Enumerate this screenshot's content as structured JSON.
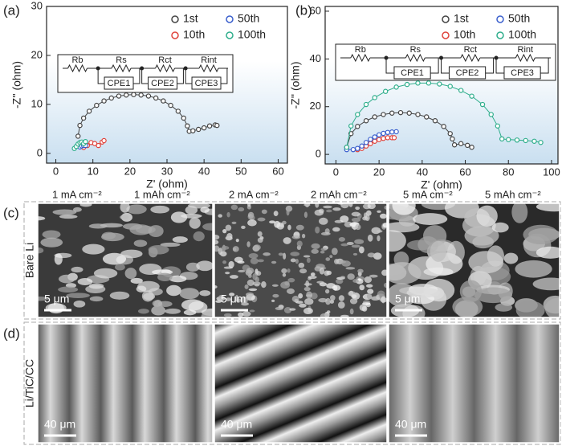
{
  "chart_data": [
    {
      "type": "line",
      "label": "(a)",
      "xlabel": "Z' (ohm)",
      "ylabel": "-Z'' (ohm)",
      "xlim": [
        -2.5,
        62.5
      ],
      "ylim": [
        -2,
        30
      ],
      "xticks": [
        0,
        10,
        20,
        30,
        40,
        50,
        60
      ],
      "yticks": [
        0,
        10,
        20,
        30
      ],
      "legend": "upper right",
      "circuit": {
        "resistors": [
          "Rb",
          "Rs",
          "Rct",
          "Rint"
        ],
        "cpes": [
          "CPE1",
          "CPE2",
          "CPE3"
        ]
      },
      "series": [
        {
          "name": "1st",
          "color": "#444444",
          "x": [
            6,
            6.5,
            7.5,
            9,
            11,
            13,
            15,
            17,
            19,
            21,
            23,
            25,
            27,
            29,
            31,
            33,
            34.5,
            35.5,
            36,
            37,
            38.5,
            40,
            41.5,
            43,
            43.5
          ],
          "values": [
            3.5,
            5.7,
            7.2,
            8.6,
            9.8,
            10.7,
            11.3,
            11.7,
            11.9,
            12,
            11.9,
            11.7,
            11.3,
            10.7,
            9.8,
            8.6,
            7.2,
            5.6,
            4.5,
            4.6,
            4.9,
            5.2,
            5.6,
            5.8,
            5.7
          ]
        },
        {
          "name": "10th",
          "color": "#e0443c",
          "x": [
            7.5,
            8.5,
            9.5,
            10.5,
            11.5,
            12.5,
            13
          ],
          "values": [
            1.2,
            1.6,
            2.2,
            2,
            1.6,
            2.3,
            2.6
          ]
        },
        {
          "name": "50th",
          "color": "#3a5fcd",
          "x": [
            6.5,
            7,
            7.5,
            8
          ],
          "values": [
            1.3,
            1.5,
            1.6,
            1.6
          ]
        },
        {
          "name": "100th",
          "color": "#2fae8c",
          "x": [
            5,
            5.5,
            6,
            6.5,
            7,
            7.5,
            8
          ],
          "values": [
            1,
            1.4,
            1.9,
            2.2,
            2.3,
            2,
            2.4
          ]
        }
      ]
    },
    {
      "type": "line",
      "label": "(b)",
      "xlabel": "Z' (ohm)",
      "ylabel": "-Z'' (ohm)",
      "xlim": [
        -5,
        103
      ],
      "ylim": [
        -4,
        62
      ],
      "xticks": [
        0,
        20,
        40,
        60,
        80,
        100
      ],
      "yticks": [
        0,
        20,
        40,
        60
      ],
      "legend": "upper right",
      "circuit": {
        "resistors": [
          "Rb",
          "Rs",
          "Rct",
          "Rint"
        ],
        "cpes": [
          "CPE1",
          "CPE2",
          "CPE3"
        ]
      },
      "series": [
        {
          "name": "1st",
          "color": "#444444",
          "x": [
            5,
            7,
            10,
            14,
            18,
            22,
            26,
            30,
            34,
            38,
            42,
            46,
            50,
            53,
            54,
            55,
            58,
            61,
            63
          ],
          "values": [
            3,
            8.7,
            11.7,
            14.1,
            15.7,
            16.7,
            17.3,
            17.5,
            17.3,
            16.7,
            15.7,
            14.1,
            11.7,
            8.7,
            6.5,
            4,
            4.5,
            3.8,
            3
          ]
        },
        {
          "name": "10th",
          "color": "#e0443c",
          "x": [
            10,
            12,
            14,
            16,
            18,
            20,
            22,
            24,
            26,
            27
          ],
          "values": [
            2,
            2.5,
            3.5,
            4.5,
            5.5,
            6.2,
            6.7,
            7,
            7,
            7
          ]
        },
        {
          "name": "50th",
          "color": "#3a5fcd",
          "x": [
            5,
            8,
            10,
            12,
            14,
            16,
            18,
            20,
            22,
            24,
            26,
            28
          ],
          "values": [
            2,
            2,
            2.5,
            3.5,
            5,
            6.3,
            7.3,
            8.2,
            8.8,
            9.2,
            9.4,
            9.5
          ]
        },
        {
          "name": "100th",
          "color": "#2fae8c",
          "x": [
            5,
            7,
            10,
            14,
            18,
            23,
            28,
            33,
            38,
            43,
            48,
            53,
            58,
            63,
            68,
            72,
            75,
            77,
            80,
            84,
            88,
            92,
            95
          ],
          "values": [
            3,
            11.9,
            16.7,
            20.9,
            23.8,
            26.4,
            28.2,
            29.3,
            29.9,
            29.9,
            29.5,
            28.5,
            26.8,
            24.4,
            20.9,
            16.7,
            11.9,
            6.5,
            6.2,
            6,
            5.8,
            5.5,
            5
          ]
        }
      ]
    }
  ],
  "sem": {
    "conditions": [
      "1  mA cm⁻²",
      "1 mAh cm⁻²",
      "2  mA cm⁻²",
      "2 mAh cm⁻²",
      "5  mA cm⁻²",
      "5 mAh cm⁻²"
    ],
    "rows": [
      {
        "label": "(c)",
        "name": "Bare Li",
        "scale": "5 μm"
      },
      {
        "label": "(d)",
        "name": "Li/TiC/CC",
        "scale": "40 μm"
      }
    ]
  }
}
